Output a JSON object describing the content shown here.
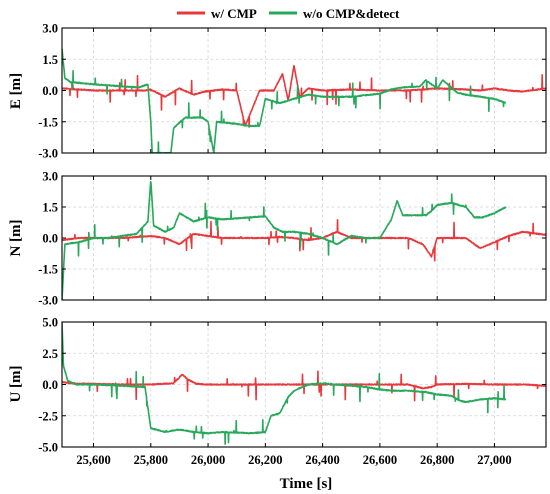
{
  "chart_data": {
    "type": "line",
    "legend": {
      "placement": "top-center",
      "entries": [
        {
          "label": "w/ CMP",
          "color": "#e8383b"
        },
        {
          "label": "w/o CMP&detect",
          "color": "#27a85a"
        }
      ]
    },
    "xlabel": "Time [s]",
    "xlim": [
      25490,
      27180
    ],
    "xticks": [
      25600,
      25800,
      26000,
      26200,
      26400,
      26600,
      26800,
      27000
    ],
    "xticklabels": [
      "25,600",
      "25,800",
      "26,000",
      "26,200",
      "26,400",
      "26,600",
      "26,800",
      "27,000"
    ],
    "grid": true,
    "panels": [
      {
        "ylabel": "E [m]",
        "ylim": [
          -3.0,
          3.0
        ],
        "yticks": [
          3.0,
          1.5,
          0.0,
          -1.5,
          -3.0
        ],
        "yticklabels": [
          "3.0",
          "1.5",
          "0.0",
          "-1.5",
          "-3.0"
        ],
        "series": [
          {
            "name": "w/ CMP",
            "color": "#e8383b",
            "x_end": 27180,
            "points": [
              [
                25490,
                0.1
              ],
              [
                25550,
                0.05
              ],
              [
                25600,
                0.0
              ],
              [
                25700,
                0.0
              ],
              [
                25780,
                0.0
              ],
              [
                25800,
                0.05
              ],
              [
                25850,
                -0.3
              ],
              [
                25900,
                0.1
              ],
              [
                25950,
                -0.2
              ],
              [
                25990,
                -0.05
              ],
              [
                26050,
                0.05
              ],
              [
                26100,
                0.0
              ],
              [
                26130,
                -1.7
              ],
              [
                26180,
                0.0
              ],
              [
                26230,
                0.0
              ],
              [
                26260,
                0.8
              ],
              [
                26280,
                -0.5
              ],
              [
                26300,
                1.2
              ],
              [
                26320,
                -0.3
              ],
              [
                26350,
                0.1
              ],
              [
                26400,
                0.0
              ],
              [
                26500,
                0.05
              ],
              [
                26600,
                0.0
              ],
              [
                26700,
                0.0
              ],
              [
                26800,
                0.1
              ],
              [
                26900,
                0.05
              ],
              [
                26950,
                0.0
              ],
              [
                27000,
                0.1
              ],
              [
                27050,
                0.0
              ],
              [
                27100,
                -0.05
              ],
              [
                27180,
                0.1
              ]
            ]
          },
          {
            "name": "w/o CMP&detect",
            "color": "#27a85a",
            "x_end": 27040,
            "points": [
              [
                25490,
                2.0
              ],
              [
                25500,
                0.6
              ],
              [
                25520,
                0.4
              ],
              [
                25600,
                0.3
              ],
              [
                25700,
                0.2
              ],
              [
                25760,
                0.15
              ],
              [
                25790,
                0.3
              ],
              [
                25800,
                -1.5
              ],
              [
                25805,
                -3.0
              ],
              [
                25870,
                -3.0
              ],
              [
                25880,
                -1.8
              ],
              [
                25920,
                -1.3
              ],
              [
                25980,
                -1.3
              ],
              [
                26000,
                -1.5
              ],
              [
                26020,
                -3.0
              ],
              [
                26030,
                -1.5
              ],
              [
                26100,
                -1.6
              ],
              [
                26140,
                -1.7
              ],
              [
                26180,
                -1.7
              ],
              [
                26200,
                -0.4
              ],
              [
                26250,
                -0.6
              ],
              [
                26300,
                -0.4
              ],
              [
                26350,
                -0.2
              ],
              [
                26400,
                -0.3
              ],
              [
                26500,
                -0.3
              ],
              [
                26600,
                -0.15
              ],
              [
                26640,
                0.05
              ],
              [
                26680,
                0.15
              ],
              [
                26740,
                0.2
              ],
              [
                26760,
                0.5
              ],
              [
                26800,
                0.1
              ],
              [
                26820,
                0.5
              ],
              [
                26870,
                -0.1
              ],
              [
                26900,
                -0.2
              ],
              [
                26950,
                -0.3
              ],
              [
                27000,
                -0.4
              ],
              [
                27040,
                -0.6
              ]
            ]
          }
        ]
      },
      {
        "ylabel": "N [m]",
        "ylim": [
          -3.0,
          3.0
        ],
        "yticks": [
          3.0,
          1.5,
          0.0,
          -1.5,
          -3.0
        ],
        "yticklabels": [
          "3.0",
          "1.5",
          "0.0",
          "-1.5",
          "-3.0"
        ],
        "series": [
          {
            "name": "w/ CMP",
            "color": "#e8383b",
            "x_end": 27180,
            "points": [
              [
                25490,
                -0.1
              ],
              [
                25550,
                0.0
              ],
              [
                25600,
                0.0
              ],
              [
                25700,
                0.0
              ],
              [
                25800,
                0.1
              ],
              [
                25850,
                0.0
              ],
              [
                25900,
                -0.3
              ],
              [
                25950,
                0.2
              ],
              [
                26000,
                0.1
              ],
              [
                26050,
                0.0
              ],
              [
                26100,
                0.0
              ],
              [
                26200,
                0.0
              ],
              [
                26250,
                0.05
              ],
              [
                26300,
                0.0
              ],
              [
                26350,
                -0.1
              ],
              [
                26400,
                0.0
              ],
              [
                26450,
                0.3
              ],
              [
                26500,
                0.0
              ],
              [
                26600,
                0.0
              ],
              [
                26700,
                0.0
              ],
              [
                26750,
                -0.3
              ],
              [
                26780,
                -0.9
              ],
              [
                26800,
                0.0
              ],
              [
                26850,
                0.0
              ],
              [
                26900,
                0.0
              ],
              [
                26950,
                -0.5
              ],
              [
                27000,
                -0.2
              ],
              [
                27050,
                0.1
              ],
              [
                27100,
                0.3
              ],
              [
                27180,
                0.15
              ]
            ]
          },
          {
            "name": "w/o CMP&detect",
            "color": "#27a85a",
            "x_end": 27040,
            "points": [
              [
                25490,
                -3.0
              ],
              [
                25500,
                -0.3
              ],
              [
                25550,
                -0.2
              ],
              [
                25600,
                0.0
              ],
              [
                25650,
                0.0
              ],
              [
                25700,
                0.1
              ],
              [
                25750,
                0.2
              ],
              [
                25790,
                0.8
              ],
              [
                25800,
                2.8
              ],
              [
                25810,
                0.6
              ],
              [
                25850,
                0.3
              ],
              [
                25880,
                0.5
              ],
              [
                25900,
                1.2
              ],
              [
                25950,
                0.8
              ],
              [
                26000,
                1.0
              ],
              [
                26050,
                0.9
              ],
              [
                26100,
                0.95
              ],
              [
                26150,
                1.0
              ],
              [
                26200,
                1.05
              ],
              [
                26230,
                0.5
              ],
              [
                26260,
                0.3
              ],
              [
                26300,
                0.3
              ],
              [
                26350,
                0.2
              ],
              [
                26400,
                0.0
              ],
              [
                26450,
                -0.3
              ],
              [
                26500,
                0.1
              ],
              [
                26550,
                0.0
              ],
              [
                26600,
                0.0
              ],
              [
                26640,
                0.9
              ],
              [
                26660,
                1.8
              ],
              [
                26680,
                1.1
              ],
              [
                26720,
                1.1
              ],
              [
                26760,
                1.1
              ],
              [
                26780,
                1.3
              ],
              [
                26800,
                1.6
              ],
              [
                26850,
                1.7
              ],
              [
                26900,
                1.5
              ],
              [
                26930,
                1.0
              ],
              [
                26960,
                1.0
              ],
              [
                27000,
                1.2
              ],
              [
                27040,
                1.5
              ]
            ]
          }
        ]
      },
      {
        "ylabel": "U [m]",
        "ylim": [
          -5.0,
          5.0
        ],
        "yticks": [
          5.0,
          2.5,
          0.0,
          -2.5,
          -5.0
        ],
        "yticklabels": [
          "5.0",
          "2.5",
          "0.0",
          "-2.5",
          "-5.0"
        ],
        "series": [
          {
            "name": "w/ CMP",
            "color": "#e8383b",
            "x_end": 27180,
            "points": [
              [
                25490,
                0.2
              ],
              [
                25520,
                0.1
              ],
              [
                25600,
                0.05
              ],
              [
                25700,
                0.0
              ],
              [
                25800,
                0.0
              ],
              [
                25880,
                0.1
              ],
              [
                25910,
                0.8
              ],
              [
                25930,
                0.4
              ],
              [
                25960,
                0.05
              ],
              [
                26000,
                0.0
              ],
              [
                26100,
                0.0
              ],
              [
                26200,
                0.0
              ],
              [
                26300,
                0.0
              ],
              [
                26400,
                0.0
              ],
              [
                26500,
                0.0
              ],
              [
                26600,
                0.0
              ],
              [
                26700,
                0.0
              ],
              [
                26750,
                -0.3
              ],
              [
                26780,
                -0.2
              ],
              [
                26800,
                0.0
              ],
              [
                26900,
                0.05
              ],
              [
                27000,
                0.0
              ],
              [
                27100,
                0.0
              ],
              [
                27180,
                -0.1
              ]
            ]
          },
          {
            "name": "w/o CMP&detect",
            "color": "#27a85a",
            "x_end": 27040,
            "points": [
              [
                25490,
                5.0
              ],
              [
                25495,
                1.5
              ],
              [
                25510,
                0.3
              ],
              [
                25540,
                0.0
              ],
              [
                25600,
                0.0
              ],
              [
                25700,
                -0.1
              ],
              [
                25780,
                -0.2
              ],
              [
                25800,
                -3.5
              ],
              [
                25850,
                -3.8
              ],
              [
                25900,
                -3.6
              ],
              [
                25950,
                -3.8
              ],
              [
                26000,
                -3.9
              ],
              [
                26050,
                -3.8
              ],
              [
                26100,
                -3.85
              ],
              [
                26150,
                -3.9
              ],
              [
                26200,
                -3.8
              ],
              [
                26220,
                -2.5
              ],
              [
                26250,
                -2.3
              ],
              [
                26280,
                -1.0
              ],
              [
                26300,
                -0.5
              ],
              [
                26350,
                0.0
              ],
              [
                26400,
                0.1
              ],
              [
                26450,
                0.0
              ],
              [
                26500,
                -0.1
              ],
              [
                26550,
                -0.2
              ],
              [
                26600,
                -0.4
              ],
              [
                26650,
                -0.5
              ],
              [
                26700,
                -0.5
              ],
              [
                26760,
                -0.6
              ],
              [
                26800,
                -0.8
              ],
              [
                26850,
                -0.9
              ],
              [
                26880,
                -1.3
              ],
              [
                26900,
                -1.4
              ],
              [
                26950,
                -1.2
              ],
              [
                27000,
                -1.1
              ],
              [
                27040,
                -1.2
              ]
            ]
          }
        ]
      }
    ]
  }
}
